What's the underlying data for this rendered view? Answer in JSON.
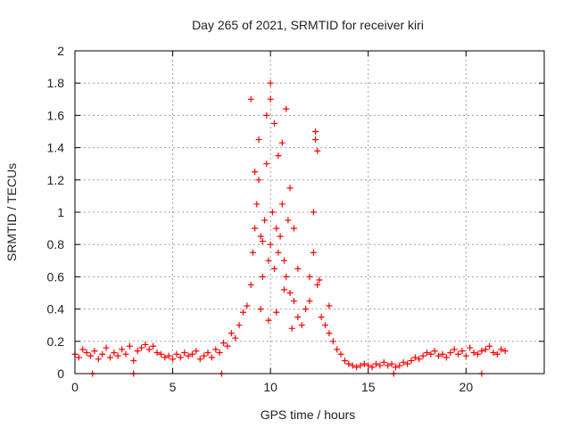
{
  "chart_data": {
    "type": "scatter",
    "title": "Day 265 of 2021, SRMTID for receiver kiri",
    "xlabel": "GPS time / hours",
    "ylabel": "SRMTID / TECUs",
    "xlim": [
      0,
      24
    ],
    "ylim": [
      0,
      2
    ],
    "xticks": [
      0,
      5,
      10,
      15,
      20
    ],
    "yticks": [
      0,
      0.2,
      0.4,
      0.6,
      0.8,
      1,
      1.2,
      1.4,
      1.6,
      1.8,
      2
    ],
    "xtick_labels": [
      "0",
      "5",
      "10",
      "15",
      "20"
    ],
    "ytick_labels": [
      "0",
      "0.2",
      "0.4",
      "0.6",
      "0.8",
      "1",
      "1.2",
      "1.4",
      "1.6",
      "1.8",
      "2"
    ],
    "grid": true,
    "marker": "plus",
    "color": "#ff0000",
    "series": [
      {
        "name": "SRMTID",
        "x": [
          0.0,
          0.2,
          0.4,
          0.6,
          0.8,
          1.0,
          1.2,
          1.4,
          1.6,
          1.8,
          2.0,
          2.2,
          2.4,
          2.6,
          2.8,
          3.0,
          3.2,
          3.4,
          3.6,
          3.8,
          4.0,
          4.2,
          4.4,
          4.6,
          4.8,
          5.0,
          5.2,
          5.4,
          5.6,
          5.8,
          6.0,
          6.2,
          6.4,
          6.6,
          6.8,
          7.0,
          7.2,
          7.4,
          7.6,
          7.8,
          8.0,
          8.2,
          8.4,
          8.6,
          8.8,
          9.0,
          9.1,
          9.2,
          9.3,
          9.4,
          9.5,
          9.6,
          9.7,
          9.8,
          9.9,
          10.0,
          10.1,
          10.2,
          10.3,
          10.4,
          10.5,
          10.6,
          10.7,
          10.8,
          10.9,
          11.0,
          11.2,
          11.4,
          11.6,
          11.8,
          12.0,
          12.2,
          12.4,
          12.6,
          12.8,
          13.0,
          13.2,
          13.4,
          13.6,
          13.8,
          14.0,
          14.2,
          14.4,
          14.6,
          14.8,
          15.0,
          15.2,
          15.4,
          15.6,
          15.8,
          16.0,
          16.2,
          16.4,
          16.6,
          16.8,
          17.0,
          17.2,
          17.4,
          17.6,
          17.8,
          18.0,
          18.2,
          18.4,
          18.6,
          18.8,
          19.0,
          19.2,
          19.4,
          19.6,
          19.8,
          20.0,
          20.2,
          20.4,
          20.6,
          20.8,
          21.0,
          21.2,
          21.4,
          21.6,
          21.8,
          22.0,
          9.0,
          9.2,
          9.4,
          9.6,
          9.8,
          10.0,
          10.0,
          10.2,
          10.4,
          10.6,
          10.8,
          11.0,
          11.2,
          11.4,
          12.3,
          12.3,
          12.4,
          12.2,
          0.9,
          3.0,
          7.5,
          16.3,
          20.8,
          9.5,
          9.9,
          10.3,
          10.7,
          11.1,
          12.0,
          12.5,
          13.0
        ],
        "y": [
          0.12,
          0.1,
          0.15,
          0.13,
          0.11,
          0.14,
          0.09,
          0.12,
          0.16,
          0.1,
          0.13,
          0.11,
          0.15,
          0.12,
          0.17,
          0.08,
          0.14,
          0.16,
          0.18,
          0.15,
          0.17,
          0.13,
          0.12,
          0.1,
          0.11,
          0.09,
          0.12,
          0.1,
          0.13,
          0.11,
          0.12,
          0.14,
          0.09,
          0.11,
          0.13,
          0.1,
          0.15,
          0.13,
          0.19,
          0.17,
          0.25,
          0.22,
          0.3,
          0.38,
          0.42,
          0.55,
          0.75,
          0.9,
          1.05,
          1.2,
          0.85,
          0.6,
          0.95,
          1.3,
          0.7,
          0.8,
          1.0,
          0.65,
          0.9,
          0.75,
          0.85,
          1.05,
          0.7,
          0.6,
          0.95,
          0.5,
          0.45,
          0.35,
          0.3,
          0.4,
          0.6,
          0.75,
          0.55,
          0.35,
          0.3,
          0.25,
          0.2,
          0.15,
          0.12,
          0.08,
          0.06,
          0.05,
          0.04,
          0.05,
          0.06,
          0.05,
          0.04,
          0.06,
          0.05,
          0.07,
          0.05,
          0.06,
          0.04,
          0.05,
          0.07,
          0.06,
          0.08,
          0.1,
          0.09,
          0.11,
          0.13,
          0.12,
          0.14,
          0.11,
          0.12,
          0.1,
          0.13,
          0.15,
          0.12,
          0.14,
          0.11,
          0.16,
          0.13,
          0.12,
          0.14,
          0.15,
          0.17,
          0.13,
          0.12,
          0.15,
          0.14,
          1.7,
          1.25,
          1.45,
          0.82,
          1.6,
          1.8,
          1.7,
          1.55,
          1.35,
          1.43,
          1.64,
          1.15,
          0.9,
          0.65,
          1.5,
          1.45,
          1.38,
          1.0,
          0.0,
          0.0,
          0.0,
          0.0,
          0.0,
          0.4,
          0.33,
          0.38,
          0.52,
          0.28,
          0.45,
          0.58,
          0.42
        ]
      }
    ]
  }
}
